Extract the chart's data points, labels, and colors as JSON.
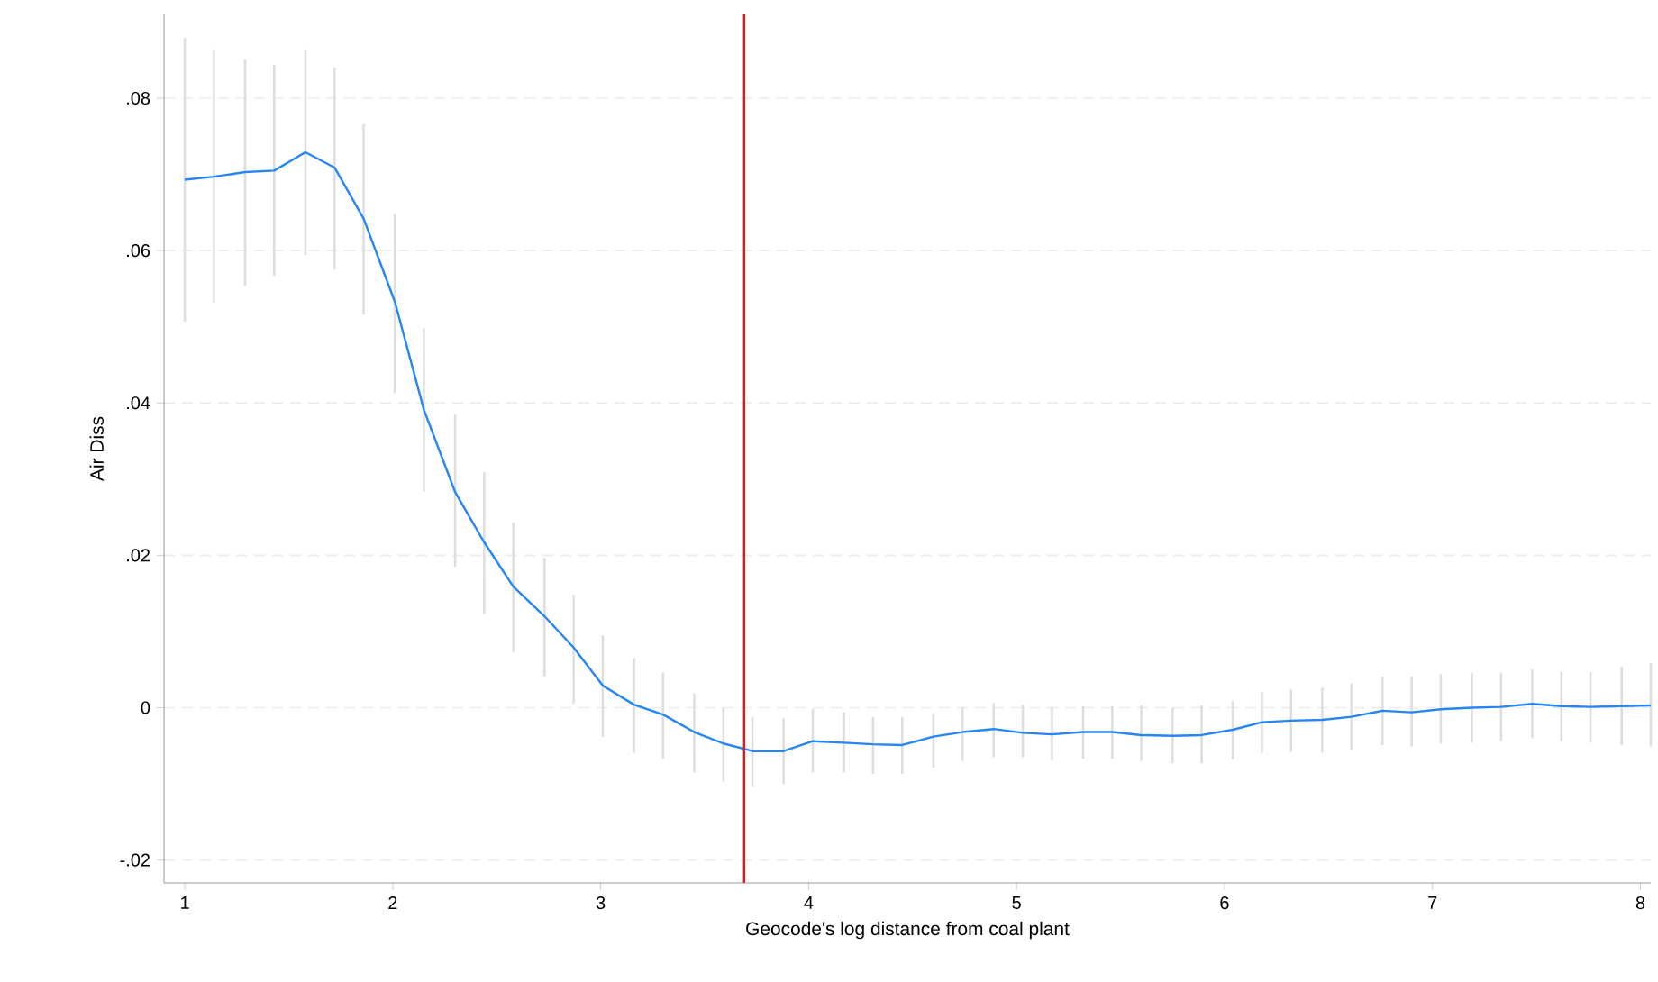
{
  "chart_data": {
    "type": "line",
    "xlabel": "Geocode's log distance from coal plant",
    "ylabel": "Air Diss",
    "x": [
      1.0,
      1.14,
      1.29,
      1.43,
      1.58,
      1.72,
      1.86,
      2.01,
      2.15,
      2.3,
      2.44,
      2.58,
      2.73,
      2.87,
      3.01,
      3.16,
      3.3,
      3.45,
      3.59,
      3.73,
      3.88,
      4.02,
      4.17,
      4.31,
      4.45,
      4.6,
      4.74,
      4.89,
      5.03,
      5.17,
      5.32,
      5.46,
      5.6,
      5.75,
      5.89,
      6.04,
      6.18,
      6.32,
      6.47,
      6.61,
      6.76,
      6.9,
      7.04,
      7.19,
      7.33,
      7.48,
      7.62,
      7.76,
      7.91,
      8.05
    ],
    "series": [
      {
        "color": "#2585f7",
        "values": [
          0.0693,
          0.0697,
          0.0703,
          0.0705,
          0.0729,
          0.0709,
          0.0642,
          0.0533,
          0.0391,
          0.0283,
          0.0217,
          0.0159,
          0.012,
          0.0079,
          0.0029,
          0.0004,
          -0.0009,
          -0.0032,
          -0.0047,
          -0.0057,
          -0.0057,
          -0.0044,
          -0.0046,
          -0.0048,
          -0.0049,
          -0.0038,
          -0.0032,
          -0.0028,
          -0.0033,
          -0.0035,
          -0.0032,
          -0.0032,
          -0.0036,
          -0.0037,
          -0.0036,
          -0.0029,
          -0.0019,
          -0.0017,
          -0.0016,
          -0.0012,
          -0.0004,
          -0.0006,
          -0.0002,
          0,
          0.0001,
          0.0005,
          0.0002,
          0.0001,
          0.0002,
          0.0003
        ],
        "errors": [
          [
            0.0507,
            0.0879
          ],
          [
            0.0532,
            0.0863
          ],
          [
            0.0554,
            0.0851
          ],
          [
            0.0567,
            0.0844
          ],
          [
            0.0594,
            0.0863
          ],
          [
            0.0575,
            0.084
          ],
          [
            0.0516,
            0.0766
          ],
          [
            0.0413,
            0.0648
          ],
          [
            0.0284,
            0.0498
          ],
          [
            0.0185,
            0.0385
          ],
          [
            0.0123,
            0.0309
          ],
          [
            0.0073,
            0.0243
          ],
          [
            0.0041,
            0.0197
          ],
          [
            0.0005,
            0.0148
          ],
          [
            -0.0038,
            0.0095
          ],
          [
            -0.0059,
            0.0065
          ],
          [
            -0.0067,
            0.0046
          ],
          [
            -0.0085,
            0.0019
          ],
          [
            -0.0097,
            0
          ],
          [
            -0.0103,
            -0.0012
          ],
          [
            -0.01,
            -0.0014
          ],
          [
            -0.0085,
            -0.0002
          ],
          [
            -0.0085,
            -0.0006
          ],
          [
            -0.0087,
            -0.0012
          ],
          [
            -0.0087,
            -0.0012
          ],
          [
            -0.0079,
            -0.0007
          ],
          [
            -0.007,
            0
          ],
          [
            -0.0065,
            0.0006
          ],
          [
            -0.0065,
            0.0004
          ],
          [
            -0.0069,
            0.0001
          ],
          [
            -0.0067,
            0.0002
          ],
          [
            -0.0067,
            0.0002
          ],
          [
            -0.007,
            0.0003
          ],
          [
            -0.0073,
            0
          ],
          [
            -0.0073,
            0.0003
          ],
          [
            -0.0068,
            0.0009
          ],
          [
            -0.0059,
            0.0021
          ],
          [
            -0.0058,
            0.0024
          ],
          [
            -0.0059,
            0.0026
          ],
          [
            -0.0055,
            0.0032
          ],
          [
            -0.0049,
            0.0041
          ],
          [
            -0.0051,
            0.0041
          ],
          [
            -0.0047,
            0.0044
          ],
          [
            -0.0046,
            0.0046
          ],
          [
            -0.0044,
            0.0046
          ],
          [
            -0.004,
            0.005
          ],
          [
            -0.0044,
            0.0047
          ],
          [
            -0.0046,
            0.0047
          ],
          [
            -0.0049,
            0.0054
          ],
          [
            -0.0051,
            0.0059
          ]
        ]
      }
    ],
    "xlim": [
      0.9,
      8.05
    ],
    "ylim": [
      -0.023,
      0.091
    ],
    "xticks": [
      1,
      2,
      3,
      4,
      5,
      6,
      7,
      8
    ],
    "yticks": [
      {
        "value": -0.02,
        "label": "-.02"
      },
      {
        "value": 0,
        "label": "0"
      },
      {
        "value": 0.02,
        "label": ".02"
      },
      {
        "value": 0.04,
        "label": ".04"
      },
      {
        "value": 0.06,
        "label": ".06"
      },
      {
        "value": 0.08,
        "label": ".08"
      }
    ],
    "ref_lines": [
      {
        "axis": "x",
        "value": 3.69,
        "color": "#e8161b"
      }
    ],
    "grid": "y",
    "marker": "none",
    "line_style": "solid"
  }
}
